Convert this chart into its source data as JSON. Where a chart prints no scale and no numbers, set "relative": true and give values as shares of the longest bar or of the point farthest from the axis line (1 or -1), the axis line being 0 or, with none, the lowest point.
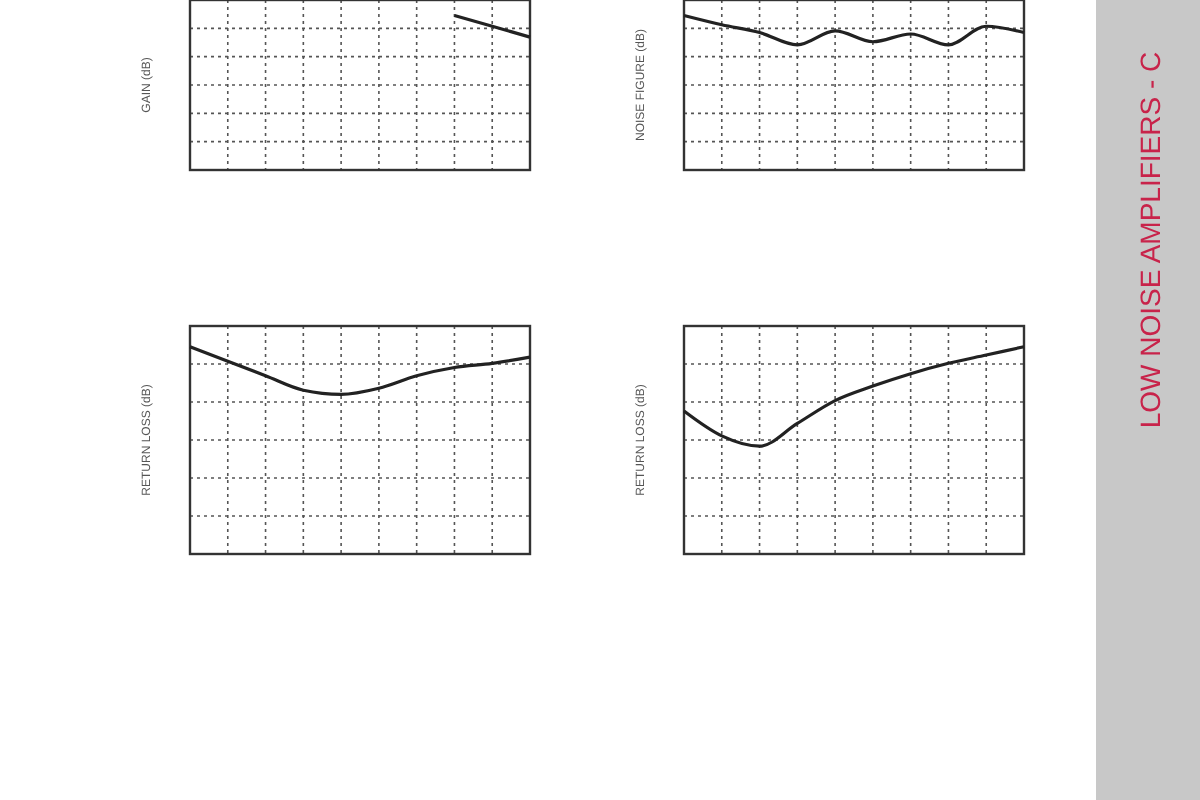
{
  "chart_data": [
    {
      "type": "line",
      "ylabel": "GAIN (dB)",
      "categories": [
        null,
        null,
        null,
        null,
        null,
        null,
        null,
        null,
        null,
        null
      ],
      "values": [
        null,
        null,
        null,
        null,
        null,
        null,
        null,
        1.0,
        0.93,
        0.86
      ],
      "color": "#222222",
      "relative": true,
      "grid": true
    },
    {
      "type": "line",
      "ylabel": "NOISE FIGURE (dB)",
      "categories": [
        null,
        null,
        null,
        null,
        null,
        null,
        null,
        null,
        null,
        null
      ],
      "values": [
        1.0,
        0.94,
        0.89,
        0.81,
        0.9,
        0.83,
        0.88,
        0.81,
        0.93,
        0.89
      ],
      "color": "#222222",
      "relative": true,
      "grid": true
    },
    {
      "type": "line",
      "ylabel": "RETURN LOSS (dB)",
      "categories": [
        null,
        null,
        null,
        null,
        null,
        null,
        null,
        null,
        null,
        null
      ],
      "values": [
        1.0,
        0.93,
        0.86,
        0.79,
        0.77,
        0.8,
        0.86,
        0.9,
        0.92,
        0.95
      ],
      "color": "#222222",
      "relative": true,
      "grid": true
    },
    {
      "type": "line",
      "ylabel": "RETURN LOSS (dB)",
      "categories": [
        null,
        null,
        null,
        null,
        null,
        null,
        null,
        null,
        null,
        null
      ],
      "values": [
        0.69,
        0.57,
        0.52,
        0.63,
        0.74,
        0.81,
        0.87,
        0.92,
        0.96,
        1.0
      ],
      "color": "#222222",
      "relative": true,
      "grid": true
    },
    {
      "type": "other",
      "annotations": [
        "LOW NOISE AMPLIFIERS - C"
      ]
    }
  ]
}
